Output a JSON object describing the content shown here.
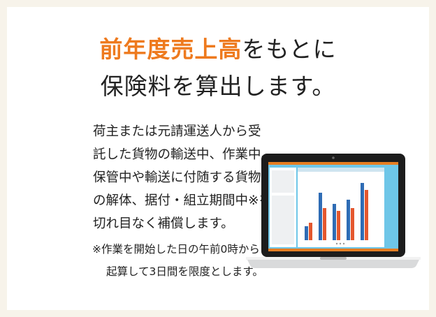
{
  "heading": {
    "highlight": "前年度売上高",
    "rest": "をもとに",
    "line2": "保険料を算出します。"
  },
  "body": {
    "lines": [
      "荷主または元請運送人から受",
      "託した貨物の輸送中、作業中、",
      "保管中や輸送に付随する貨物",
      "の解体、据付・組立期間中※を",
      "切れ目なく補償します。"
    ]
  },
  "note": {
    "lines": [
      "※作業を開始した日の午前0時から",
      "起算して3日間を限度とします。"
    ]
  }
}
